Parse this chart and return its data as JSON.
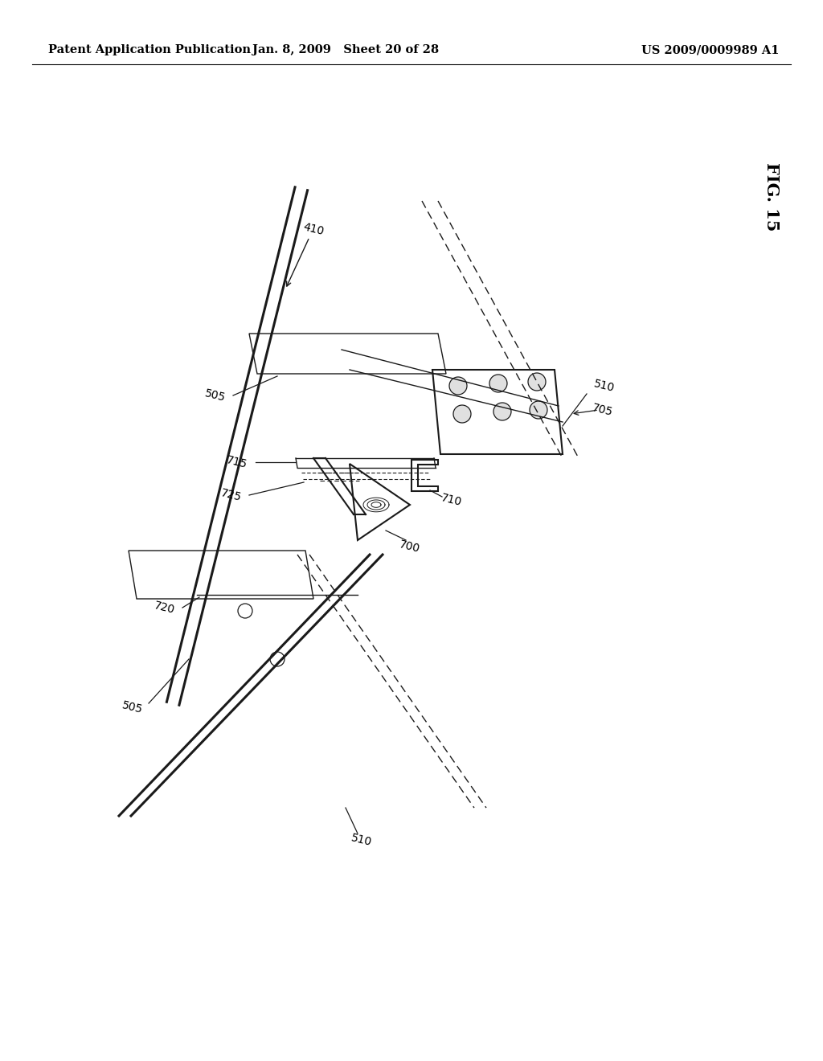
{
  "bg_color": "#ffffff",
  "title_left": "Patent Application Publication",
  "title_center": "Jan. 8, 2009   Sheet 20 of 28",
  "title_right": "US 2009/0009989 A1",
  "fig_label": "FIG. 15",
  "header_fontsize": 10.5,
  "fig_label_fontsize": 15,
  "label_fontsize": 10,
  "drawing_color": "#1a1a1a",
  "lw_thick": 2.2,
  "lw_med": 1.5,
  "lw_thin": 1.0
}
